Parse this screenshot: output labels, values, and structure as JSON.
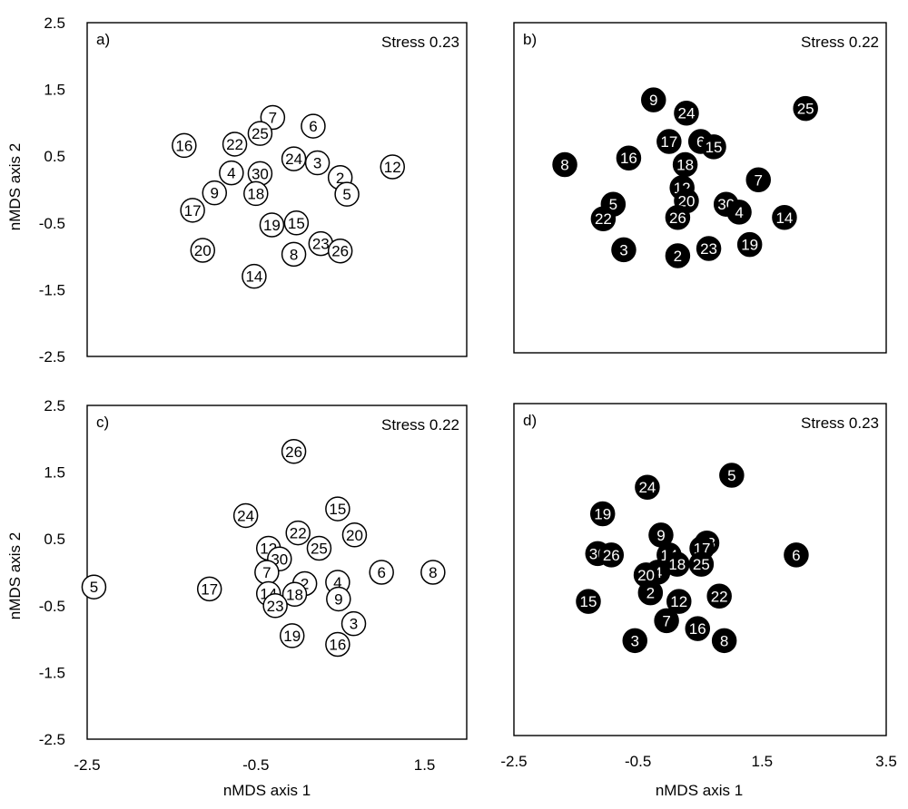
{
  "figure": {
    "ylabel": "nMDS axis 2",
    "xlabel": "nMDS axis 1"
  },
  "chart_data": [
    {
      "type": "scatter",
      "panel_label": "a)",
      "stress": "Stress 0.23",
      "marker_fill": "#ffffff",
      "marker_stroke": "#000000",
      "label_color": "#000000",
      "xlim": [
        -2.5,
        2.0
      ],
      "ylim": [
        -2.5,
        2.5
      ],
      "yticks": [
        "2.5",
        "1.5",
        "0.5",
        "-0.5",
        "-1.5",
        "-2.5"
      ],
      "xticks": [],
      "points": [
        {
          "label": "7",
          "x": -0.3,
          "y": 1.08
        },
        {
          "label": "25",
          "x": -0.45,
          "y": 0.84
        },
        {
          "label": "6",
          "x": 0.18,
          "y": 0.95
        },
        {
          "label": "16",
          "x": -1.35,
          "y": 0.66
        },
        {
          "label": "22",
          "x": -0.75,
          "y": 0.68
        },
        {
          "label": "24",
          "x": -0.05,
          "y": 0.46
        },
        {
          "label": "3",
          "x": 0.23,
          "y": 0.4
        },
        {
          "label": "12",
          "x": 1.12,
          "y": 0.34
        },
        {
          "label": "2",
          "x": 0.5,
          "y": 0.18
        },
        {
          "label": "4",
          "x": -0.79,
          "y": 0.25
        },
        {
          "label": "30",
          "x": -0.45,
          "y": 0.24
        },
        {
          "label": "5",
          "x": 0.58,
          "y": -0.07
        },
        {
          "label": "9",
          "x": -0.99,
          "y": -0.05
        },
        {
          "label": "18",
          "x": -0.5,
          "y": -0.06
        },
        {
          "label": "17",
          "x": -1.25,
          "y": -0.31
        },
        {
          "label": "19",
          "x": -0.31,
          "y": -0.53
        },
        {
          "label": "15",
          "x": -0.02,
          "y": -0.5
        },
        {
          "label": "23",
          "x": 0.27,
          "y": -0.81
        },
        {
          "label": "20",
          "x": -1.13,
          "y": -0.91
        },
        {
          "label": "8",
          "x": -0.05,
          "y": -0.97
        },
        {
          "label": "26",
          "x": 0.5,
          "y": -0.92
        },
        {
          "label": "14",
          "x": -0.52,
          "y": -1.3
        }
      ]
    },
    {
      "type": "scatter",
      "panel_label": "b)",
      "stress": "Stress 0.22",
      "marker_fill": "#000000",
      "marker_stroke": "#000000",
      "label_color": "#ffffff",
      "xlim": [
        -2.5,
        3.5
      ],
      "ylim": [
        -2.5,
        2.5
      ],
      "yticks": [],
      "xticks": [],
      "points": [
        {
          "label": "9",
          "x": -0.25,
          "y": 1.33
        },
        {
          "label": "25",
          "x": 2.2,
          "y": 1.2
        },
        {
          "label": "24",
          "x": 0.28,
          "y": 1.13
        },
        {
          "label": "17",
          "x": 0.0,
          "y": 0.7
        },
        {
          "label": "6",
          "x": 0.51,
          "y": 0.7
        },
        {
          "label": "15",
          "x": 0.72,
          "y": 0.62
        },
        {
          "label": "16",
          "x": -0.65,
          "y": 0.45
        },
        {
          "label": "8",
          "x": -1.68,
          "y": 0.35
        },
        {
          "label": "18",
          "x": 0.26,
          "y": 0.35
        },
        {
          "label": "7",
          "x": 1.44,
          "y": 0.12
        },
        {
          "label": "12",
          "x": 0.21,
          "y": 0.0
        },
        {
          "label": "20",
          "x": 0.28,
          "y": -0.2
        },
        {
          "label": "5",
          "x": -0.9,
          "y": -0.25
        },
        {
          "label": "30",
          "x": 0.92,
          "y": -0.25
        },
        {
          "label": "4",
          "x": 1.13,
          "y": -0.37
        },
        {
          "label": "26",
          "x": 0.14,
          "y": -0.45
        },
        {
          "label": "14",
          "x": 1.86,
          "y": -0.45
        },
        {
          "label": "22",
          "x": -1.06,
          "y": -0.47
        },
        {
          "label": "19",
          "x": 1.3,
          "y": -0.86
        },
        {
          "label": "23",
          "x": 0.64,
          "y": -0.92
        },
        {
          "label": "3",
          "x": -0.73,
          "y": -0.94
        },
        {
          "label": "2",
          "x": 0.14,
          "y": -1.03
        }
      ]
    },
    {
      "type": "scatter",
      "panel_label": "c)",
      "stress": "Stress 0.22",
      "marker_fill": "#ffffff",
      "marker_stroke": "#000000",
      "label_color": "#000000",
      "xlim": [
        -2.5,
        2.0
      ],
      "ylim": [
        -2.5,
        2.5
      ],
      "yticks": [
        "2.5",
        "1.5",
        "0.5",
        "-0.5",
        "-1.5",
        "-2.5"
      ],
      "xticks": [
        "-2.5",
        "-0.5",
        "1.5"
      ],
      "points": [
        {
          "label": "26",
          "x": -0.05,
          "y": 1.81
        },
        {
          "label": "15",
          "x": 0.47,
          "y": 0.95
        },
        {
          "label": "24",
          "x": -0.62,
          "y": 0.85
        },
        {
          "label": "22",
          "x": 0.0,
          "y": 0.59
        },
        {
          "label": "20",
          "x": 0.67,
          "y": 0.56
        },
        {
          "label": "25",
          "x": 0.25,
          "y": 0.36
        },
        {
          "label": "12",
          "x": -0.35,
          "y": 0.36
        },
        {
          "label": "30",
          "x": -0.22,
          "y": 0.2
        },
        {
          "label": "6",
          "x": 0.99,
          "y": 0.0
        },
        {
          "label": "8",
          "x": 1.6,
          "y": 0.0
        },
        {
          "label": "7",
          "x": -0.37,
          "y": 0.0
        },
        {
          "label": "4",
          "x": 0.47,
          "y": -0.15
        },
        {
          "label": "2",
          "x": 0.08,
          "y": -0.17
        },
        {
          "label": "5",
          "x": -2.42,
          "y": -0.22
        },
        {
          "label": "17",
          "x": -1.05,
          "y": -0.25
        },
        {
          "label": "14",
          "x": -0.35,
          "y": -0.32
        },
        {
          "label": "18",
          "x": -0.04,
          "y": -0.33
        },
        {
          "label": "9",
          "x": 0.48,
          "y": -0.4
        },
        {
          "label": "23",
          "x": -0.27,
          "y": -0.5
        },
        {
          "label": "3",
          "x": 0.66,
          "y": -0.77
        },
        {
          "label": "19",
          "x": -0.07,
          "y": -0.95
        },
        {
          "label": "16",
          "x": 0.47,
          "y": -1.08
        }
      ]
    },
    {
      "type": "scatter",
      "panel_label": "d)",
      "stress": "Stress 0.23",
      "marker_fill": "#000000",
      "marker_stroke": "#000000",
      "label_color": "#ffffff",
      "xlim": [
        -2.5,
        3.5
      ],
      "ylim": [
        -2.5,
        2.5
      ],
      "yticks": [],
      "xticks": [
        "-2.5",
        "-0.5",
        "1.5",
        "3.5"
      ],
      "points": [
        {
          "label": "5",
          "x": 1.01,
          "y": 1.42
        },
        {
          "label": "24",
          "x": -0.35,
          "y": 1.24
        },
        {
          "label": "19",
          "x": -1.07,
          "y": 0.84
        },
        {
          "label": "9",
          "x": -0.13,
          "y": 0.52
        },
        {
          "label": "23",
          "x": 0.61,
          "y": 0.4
        },
        {
          "label": "17",
          "x": 0.53,
          "y": 0.32
        },
        {
          "label": "30",
          "x": -1.15,
          "y": 0.24
        },
        {
          "label": "26",
          "x": -0.93,
          "y": 0.22
        },
        {
          "label": "14",
          "x": 0.0,
          "y": 0.22
        },
        {
          "label": "6",
          "x": 2.05,
          "y": 0.22
        },
        {
          "label": "18",
          "x": 0.13,
          "y": 0.08
        },
        {
          "label": "25",
          "x": 0.52,
          "y": 0.08
        },
        {
          "label": "4",
          "x": -0.18,
          "y": -0.04
        },
        {
          "label": "20",
          "x": -0.37,
          "y": -0.08
        },
        {
          "label": "2",
          "x": -0.3,
          "y": -0.35
        },
        {
          "label": "22",
          "x": 0.81,
          "y": -0.4
        },
        {
          "label": "12",
          "x": 0.16,
          "y": -0.48
        },
        {
          "label": "15",
          "x": -1.3,
          "y": -0.48
        },
        {
          "label": "7",
          "x": -0.04,
          "y": -0.77
        },
        {
          "label": "16",
          "x": 0.46,
          "y": -0.89
        },
        {
          "label": "3",
          "x": -0.55,
          "y": -1.07
        },
        {
          "label": "8",
          "x": 0.89,
          "y": -1.07
        }
      ]
    }
  ]
}
